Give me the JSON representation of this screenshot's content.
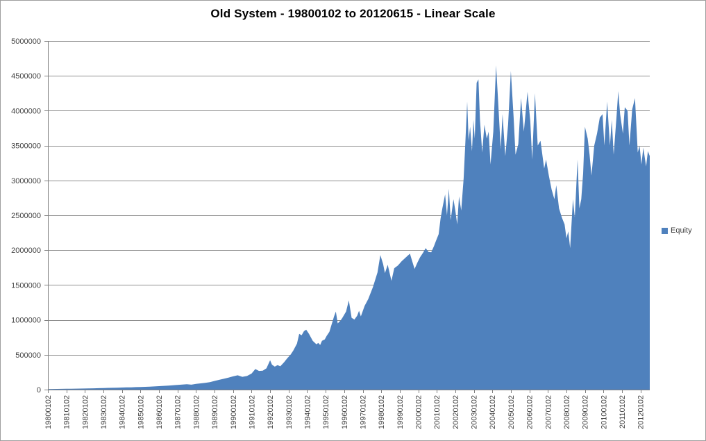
{
  "chart": {
    "title": "Old System - 19800102 to 20120615 - Linear Scale",
    "legend": {
      "items": [
        {
          "label": "Equity",
          "color": "#4F81BD"
        }
      ]
    }
  },
  "chart_data": {
    "type": "area",
    "title": "Old System - 19800102 to 20120615 - Linear Scale",
    "xlabel": "",
    "ylabel": "",
    "x_unit": "years_since_1980_decimal",
    "x_range": [
      0,
      32.5
    ],
    "ylim": [
      0,
      5000000
    ],
    "y_ticks": [
      0,
      500000,
      1000000,
      1500000,
      2000000,
      2500000,
      3000000,
      3500000,
      4000000,
      4500000,
      5000000
    ],
    "x_tick_labels": [
      "19800102",
      "19810102",
      "19820102",
      "19830102",
      "19840102",
      "19850102",
      "19860102",
      "19870102",
      "19880102",
      "19890102",
      "19900102",
      "19910102",
      "19920102",
      "19930102",
      "19940102",
      "19950102",
      "19960102",
      "19970102",
      "19980102",
      "19990102",
      "20000102",
      "20010102",
      "20020102",
      "20030102",
      "20040102",
      "20050102",
      "20060102",
      "20070102",
      "20080102",
      "20090102",
      "20100102",
      "20110102",
      "20120102"
    ],
    "grid": "horizontal-major",
    "legend_position": "right",
    "colors": {
      "gridline": "#8e8e8e",
      "axis": "#7f7f7f",
      "tick_label": "#404040",
      "background": "#ffffff"
    },
    "series": [
      {
        "name": "Equity",
        "color": "#4F81BD",
        "points": [
          [
            0,
            8000
          ],
          [
            0.25,
            9000
          ],
          [
            0.5,
            10000
          ],
          [
            0.75,
            11000
          ],
          [
            1,
            12000
          ],
          [
            1.25,
            13000
          ],
          [
            1.5,
            14000
          ],
          [
            1.75,
            15000
          ],
          [
            2,
            16000
          ],
          [
            2.25,
            17500
          ],
          [
            2.5,
            19000
          ],
          [
            2.75,
            21000
          ],
          [
            3,
            23000
          ],
          [
            3.25,
            24500
          ],
          [
            3.5,
            26000
          ],
          [
            3.75,
            28000
          ],
          [
            4,
            30000
          ],
          [
            4.25,
            31500
          ],
          [
            4.5,
            33000
          ],
          [
            4.75,
            36000
          ],
          [
            5,
            38000
          ],
          [
            5.25,
            40000
          ],
          [
            5.5,
            43000
          ],
          [
            5.75,
            46000
          ],
          [
            6,
            50000
          ],
          [
            6.25,
            54000
          ],
          [
            6.5,
            58000
          ],
          [
            6.75,
            63000
          ],
          [
            7,
            68000
          ],
          [
            7.25,
            73000
          ],
          [
            7.5,
            78000
          ],
          [
            7.75,
            71000
          ],
          [
            8,
            82000
          ],
          [
            8.25,
            90000
          ],
          [
            8.5,
            98000
          ],
          [
            8.75,
            108000
          ],
          [
            9,
            125000
          ],
          [
            9.25,
            140000
          ],
          [
            9.5,
            155000
          ],
          [
            9.75,
            172000
          ],
          [
            10,
            190000
          ],
          [
            10.25,
            205000
          ],
          [
            10.5,
            183000
          ],
          [
            10.75,
            195000
          ],
          [
            11,
            230000
          ],
          [
            11.2,
            295000
          ],
          [
            11.4,
            268000
          ],
          [
            11.6,
            272000
          ],
          [
            11.8,
            305000
          ],
          [
            12,
            420000
          ],
          [
            12.1,
            358000
          ],
          [
            12.25,
            330000
          ],
          [
            12.4,
            352000
          ],
          [
            12.55,
            335000
          ],
          [
            12.75,
            390000
          ],
          [
            12.93,
            450000
          ],
          [
            13.1,
            500000
          ],
          [
            13.25,
            560000
          ],
          [
            13.45,
            660000
          ],
          [
            13.57,
            800000
          ],
          [
            13.7,
            780000
          ],
          [
            13.83,
            840000
          ],
          [
            13.95,
            860000
          ],
          [
            14.1,
            800000
          ],
          [
            14.3,
            700000
          ],
          [
            14.5,
            650000
          ],
          [
            14.6,
            670000
          ],
          [
            14.7,
            640000
          ],
          [
            14.8,
            700000
          ],
          [
            14.95,
            720000
          ],
          [
            15.05,
            770000
          ],
          [
            15.2,
            830000
          ],
          [
            15.45,
            1050000
          ],
          [
            15.55,
            1120000
          ],
          [
            15.65,
            950000
          ],
          [
            15.8,
            990000
          ],
          [
            15.9,
            1030000
          ],
          [
            16.1,
            1120000
          ],
          [
            16.25,
            1280000
          ],
          [
            16.4,
            1030000
          ],
          [
            16.55,
            1005000
          ],
          [
            16.7,
            1060000
          ],
          [
            16.8,
            1130000
          ],
          [
            16.9,
            1050000
          ],
          [
            17.1,
            1200000
          ],
          [
            17.3,
            1300000
          ],
          [
            17.55,
            1470000
          ],
          [
            17.8,
            1680000
          ],
          [
            17.95,
            1930000
          ],
          [
            18.1,
            1800000
          ],
          [
            18.2,
            1670000
          ],
          [
            18.35,
            1790000
          ],
          [
            18.55,
            1560000
          ],
          [
            18.7,
            1740000
          ],
          [
            18.9,
            1780000
          ],
          [
            19.1,
            1840000
          ],
          [
            19.3,
            1890000
          ],
          [
            19.55,
            1950000
          ],
          [
            19.8,
            1730000
          ],
          [
            19.95,
            1820000
          ],
          [
            20.1,
            1900000
          ],
          [
            20.25,
            1960000
          ],
          [
            20.4,
            2030000
          ],
          [
            20.55,
            1975000
          ],
          [
            20.7,
            1970000
          ],
          [
            20.85,
            2060000
          ],
          [
            20.95,
            2130000
          ],
          [
            21.1,
            2230000
          ],
          [
            21.2,
            2450000
          ],
          [
            21.3,
            2600000
          ],
          [
            21.45,
            2800000
          ],
          [
            21.55,
            2500000
          ],
          [
            21.65,
            2880000
          ],
          [
            21.75,
            2430000
          ],
          [
            21.9,
            2730000
          ],
          [
            22,
            2570000
          ],
          [
            22.1,
            2370000
          ],
          [
            22.2,
            2770000
          ],
          [
            22.32,
            2570000
          ],
          [
            22.45,
            3030000
          ],
          [
            22.55,
            3600000
          ],
          [
            22.64,
            4130000
          ],
          [
            22.72,
            3570000
          ],
          [
            22.8,
            3770000
          ],
          [
            22.9,
            3420000
          ],
          [
            22.98,
            3870000
          ],
          [
            23.05,
            3600000
          ],
          [
            23.15,
            4400000
          ],
          [
            23.25,
            4450000
          ],
          [
            23.33,
            3870000
          ],
          [
            23.45,
            3400000
          ],
          [
            23.57,
            3800000
          ],
          [
            23.7,
            3600000
          ],
          [
            23.8,
            3700000
          ],
          [
            23.9,
            3230000
          ],
          [
            24.05,
            3700000
          ],
          [
            24.2,
            4650000
          ],
          [
            24.3,
            4200000
          ],
          [
            24.45,
            3450000
          ],
          [
            24.55,
            3950000
          ],
          [
            24.7,
            3350000
          ],
          [
            24.85,
            3800000
          ],
          [
            25,
            4570000
          ],
          [
            25.15,
            3900000
          ],
          [
            25.25,
            3370000
          ],
          [
            25.4,
            3520000
          ],
          [
            25.55,
            4180000
          ],
          [
            25.7,
            3700000
          ],
          [
            25.9,
            4270000
          ],
          [
            26.05,
            3850000
          ],
          [
            26.15,
            3300000
          ],
          [
            26.3,
            4250000
          ],
          [
            26.45,
            3500000
          ],
          [
            26.6,
            3570000
          ],
          [
            26.8,
            3170000
          ],
          [
            26.9,
            3300000
          ],
          [
            27.05,
            3070000
          ],
          [
            27.2,
            2870000
          ],
          [
            27.35,
            2730000
          ],
          [
            27.45,
            2930000
          ],
          [
            27.6,
            2600000
          ],
          [
            27.75,
            2470000
          ],
          [
            27.9,
            2370000
          ],
          [
            28,
            2170000
          ],
          [
            28.1,
            2270000
          ],
          [
            28.2,
            2030000
          ],
          [
            28.35,
            2730000
          ],
          [
            28.45,
            2470000
          ],
          [
            28.6,
            3300000
          ],
          [
            28.7,
            2600000
          ],
          [
            28.8,
            2730000
          ],
          [
            28.9,
            3100000
          ],
          [
            29,
            3770000
          ],
          [
            29.15,
            3600000
          ],
          [
            29.25,
            3370000
          ],
          [
            29.35,
            3070000
          ],
          [
            29.5,
            3500000
          ],
          [
            29.65,
            3670000
          ],
          [
            29.8,
            3900000
          ],
          [
            29.95,
            3950000
          ],
          [
            30.05,
            3500000
          ],
          [
            30.2,
            4130000
          ],
          [
            30.35,
            3500000
          ],
          [
            30.45,
            3870000
          ],
          [
            30.55,
            3370000
          ],
          [
            30.7,
            3900000
          ],
          [
            30.8,
            4280000
          ],
          [
            30.9,
            3950000
          ],
          [
            31.05,
            3670000
          ],
          [
            31.15,
            4050000
          ],
          [
            31.3,
            4000000
          ],
          [
            31.4,
            3500000
          ],
          [
            31.55,
            4020000
          ],
          [
            31.7,
            4180000
          ],
          [
            31.85,
            3400000
          ],
          [
            31.95,
            3500000
          ],
          [
            32.05,
            3230000
          ],
          [
            32.15,
            3470000
          ],
          [
            32.3,
            3200000
          ],
          [
            32.4,
            3420000
          ],
          [
            32.5,
            3350000
          ]
        ]
      }
    ]
  }
}
